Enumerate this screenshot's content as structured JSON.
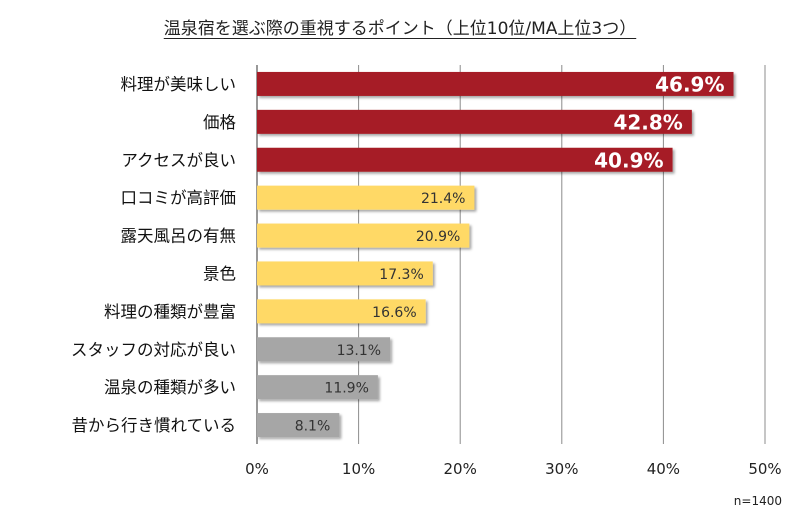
{
  "chart_data": {
    "type": "bar",
    "orientation": "horizontal",
    "title": "温泉宿を選ぶ際の重視するポイント（上位10位/MA上位3つ）",
    "categories": [
      "料理が美味しい",
      "価格",
      "アクセスが良い",
      "口コミが高評価",
      "露天風呂の有無",
      "景色",
      "料理の種類が豊富",
      "スタッフの対応が良い",
      "温泉の種類が多い",
      "昔から行き慣れている"
    ],
    "values": [
      46.9,
      42.8,
      40.9,
      21.4,
      20.9,
      17.3,
      16.6,
      13.1,
      11.9,
      8.1
    ],
    "data_labels": [
      "46.9%",
      "42.8%",
      "40.9%",
      "21.4%",
      "20.9%",
      "17.3%",
      "16.6%",
      "13.1%",
      "11.9%",
      "8.1%"
    ],
    "xlim": [
      0,
      50
    ],
    "x_ticks": [
      "0%",
      "10%",
      "20%",
      "30%",
      "40%",
      "50%"
    ],
    "grid": "vertical",
    "colors": [
      "#a61f25",
      "#a61f25",
      "#a61f25",
      "#ffd966",
      "#ffd966",
      "#ffd966",
      "#ffd966",
      "#a6a6a6",
      "#a6a6a6",
      "#a6a6a6"
    ],
    "label_colors": [
      "#ffffff",
      "#ffffff",
      "#ffffff",
      "#333333",
      "#333333",
      "#333333",
      "#333333",
      "#333333",
      "#333333",
      "#333333"
    ],
    "note": "n=1400"
  }
}
